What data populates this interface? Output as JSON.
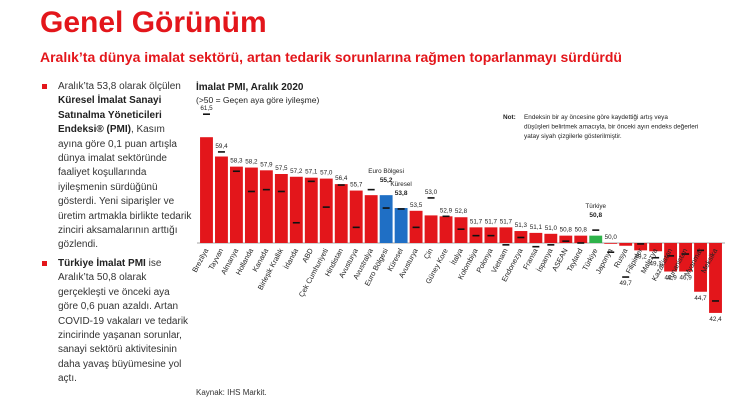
{
  "header": {
    "title": "Genel Görünüm",
    "subtitle": "Aralık’ta dünya imalat sektörü, artan tedarik sorunlarına rağmen toparlanmayı sürdürdü"
  },
  "bullets": [
    {
      "pre": "Aralık’ta 53,8 olarak ölçülen ",
      "bold": "Küresel İmalat Sanayi Satınalma Yöneticileri Endeksi® (PMI)",
      "post": ", Kasım ayına göre 0,1 puan artışla dünya imalat sektöründe faaliyet koşullarında iyileşmenin sürdüğünü gösterdi. Yeni siparişler ve üretim artmakla birlikte tedarik zinciri aksamalarının arttığı gözlendi."
    },
    {
      "pre": "",
      "bold": "Türkiye İmalat PMI",
      "post": " ise Aralık’ta 50,8 olarak gerçekleşti ve önceki aya göre 0,6 puan azaldı. Artan COVID-19 vakaları ve tedarik zincirinde yaşanan sorunlar, sanayi sektörü aktivitesinin daha yavaş büyümesine yol açtı."
    }
  ],
  "chart_data": {
    "type": "bar",
    "title": "İmalat PMI, Aralık 2020",
    "subtitle": "(>50 = Geçen aya göre iyileşme)",
    "baseline": 50,
    "note_label": "Not:",
    "note_text": "Endeksin bir ay öncesine göre kaydettiği artış veya düşüşleri belirtmek amacıyla, bir önceki ayın endeks değerleri yatay siyah çizgilerle gösterilmiştir.",
    "colors": {
      "default": "#e3161b",
      "highlight": "#1f6fc5",
      "turkey": "#2eb34a",
      "prev_marker": "#111111"
    },
    "categories": [
      "Brezilya",
      "Tayvan",
      "Almanya",
      "Hollanda",
      "Kanada",
      "Birleşik Krallık",
      "İrlanda",
      "ABD",
      "Çek Cumhuriyeti",
      "Hindistan",
      "Avusturya",
      "Avustralya",
      "Euro Bölgesi",
      "Küresel",
      "Avusturya",
      "Çin",
      "Güney Kore",
      "İtalya",
      "Kolombiya",
      "Polonya",
      "Vietnam",
      "Endonezya",
      "Fransa",
      "İspanya",
      "ASEAN",
      "Tayland",
      "Türkiye",
      "Japonya",
      "Rusya",
      "Filipinler",
      "Malezya",
      "Kazakistan",
      "Yunanistan",
      "Myanmar",
      "Meksika"
    ],
    "values": [
      61.5,
      59.4,
      58.3,
      58.2,
      57.9,
      57.5,
      57.2,
      57.1,
      57.0,
      56.4,
      55.7,
      55.2,
      55.2,
      53.8,
      53.5,
      53.0,
      52.9,
      52.8,
      51.7,
      51.7,
      51.7,
      51.3,
      51.1,
      51.0,
      50.8,
      50.8,
      50.8,
      50.0,
      49.7,
      49.2,
      49.1,
      46.9,
      46.9,
      44.7,
      42.4
    ],
    "previous": [
      64.0,
      59.9,
      57.8,
      55.6,
      55.8,
      55.6,
      52.2,
      56.7,
      53.9,
      56.3,
      51.7,
      55.8,
      53.8,
      53.7,
      51.7,
      54.9,
      52.9,
      51.5,
      50.8,
      50.8,
      49.8,
      50.6,
      49.6,
      49.8,
      50.2,
      50.0,
      51.4,
      49.0,
      46.3,
      49.9,
      48.4,
      48.6,
      48.8,
      49.2,
      43.7
    ],
    "label_values": [
      "61,5",
      "59,4",
      "58,3",
      "58,2",
      "57,9",
      "57,5",
      "57,2",
      "57,1",
      "57,0",
      "56,4",
      "55,7",
      "",
      "",
      "",
      "53,5",
      "53,0",
      "52,9",
      "52,8",
      "51,7",
      "51,7",
      "51,7",
      "51,3",
      "51,1",
      "51,0",
      "50,8",
      "50,8",
      "",
      "50,0",
      "49,7",
      "49,2",
      "49,1",
      "46,9",
      "46,9",
      "44,7",
      "42,4"
    ],
    "highlight_labels": [
      {
        "category_index": 12,
        "name": "Euro Bölgesi",
        "value": "55,2"
      },
      {
        "category_index": 13,
        "name": "Küresel",
        "value": "53,8"
      },
      {
        "category_index": 26,
        "name": "Türkiye",
        "value": "50,8"
      }
    ]
  },
  "footer": {
    "source": "Kaynak: IHS Markit."
  }
}
